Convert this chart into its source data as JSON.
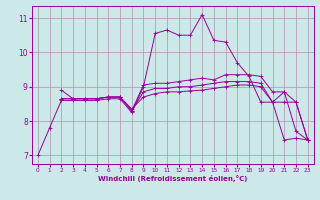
{
  "background_color": "#cce8e8",
  "grid_color": "#b090b0",
  "line_color": "#990099",
  "marker_color": "#990099",
  "xlabel": "Windchill (Refroidissement éolien,°C)",
  "xlim": [
    -0.5,
    23.5
  ],
  "ylim": [
    6.75,
    11.35
  ],
  "yticks": [
    7,
    8,
    9,
    10,
    11
  ],
  "xticks": [
    0,
    1,
    2,
    3,
    4,
    5,
    6,
    7,
    8,
    9,
    10,
    11,
    12,
    13,
    14,
    15,
    16,
    17,
    18,
    19,
    20,
    21,
    22,
    23
  ],
  "lines": [
    {
      "x": [
        0,
        1,
        2,
        3,
        4,
        5,
        6,
        7,
        8,
        9,
        10,
        11,
        12,
        13,
        14,
        15,
        16,
        17,
        18,
        19,
        20,
        21,
        22,
        23
      ],
      "y": [
        7.0,
        7.8,
        8.6,
        8.6,
        8.6,
        8.6,
        8.65,
        8.65,
        8.25,
        9.0,
        10.55,
        10.65,
        10.5,
        10.5,
        11.1,
        10.35,
        10.3,
        9.7,
        9.3,
        8.55,
        8.55,
        7.45,
        7.5,
        7.45
      ]
    },
    {
      "x": [
        2,
        3,
        4,
        5,
        6,
        7,
        8,
        9,
        10,
        11,
        12,
        13,
        14,
        15,
        16,
        17,
        18,
        19,
        20,
        21,
        22,
        23
      ],
      "y": [
        8.9,
        8.65,
        8.65,
        8.65,
        8.7,
        8.7,
        8.3,
        9.05,
        9.1,
        9.1,
        9.15,
        9.2,
        9.25,
        9.2,
        9.35,
        9.35,
        9.35,
        9.3,
        8.85,
        8.85,
        7.7,
        7.45
      ]
    },
    {
      "x": [
        2,
        3,
        4,
        5,
        6,
        7,
        8,
        9,
        10,
        11,
        12,
        13,
        14,
        15,
        16,
        17,
        18,
        19,
        20,
        21,
        22,
        23
      ],
      "y": [
        8.65,
        8.65,
        8.65,
        8.65,
        8.7,
        8.7,
        8.3,
        8.85,
        8.95,
        8.95,
        9.0,
        9.0,
        9.05,
        9.1,
        9.15,
        9.15,
        9.15,
        9.1,
        8.55,
        8.85,
        8.55,
        7.45
      ]
    },
    {
      "x": [
        2,
        3,
        4,
        5,
        6,
        7,
        8,
        9,
        10,
        11,
        12,
        13,
        14,
        15,
        16,
        17,
        18,
        19,
        20,
        21,
        22,
        23
      ],
      "y": [
        8.65,
        8.65,
        8.65,
        8.65,
        8.7,
        8.7,
        8.35,
        8.7,
        8.8,
        8.85,
        8.85,
        8.88,
        8.9,
        8.95,
        9.0,
        9.05,
        9.05,
        9.0,
        8.55,
        8.55,
        8.55,
        7.45
      ]
    }
  ]
}
